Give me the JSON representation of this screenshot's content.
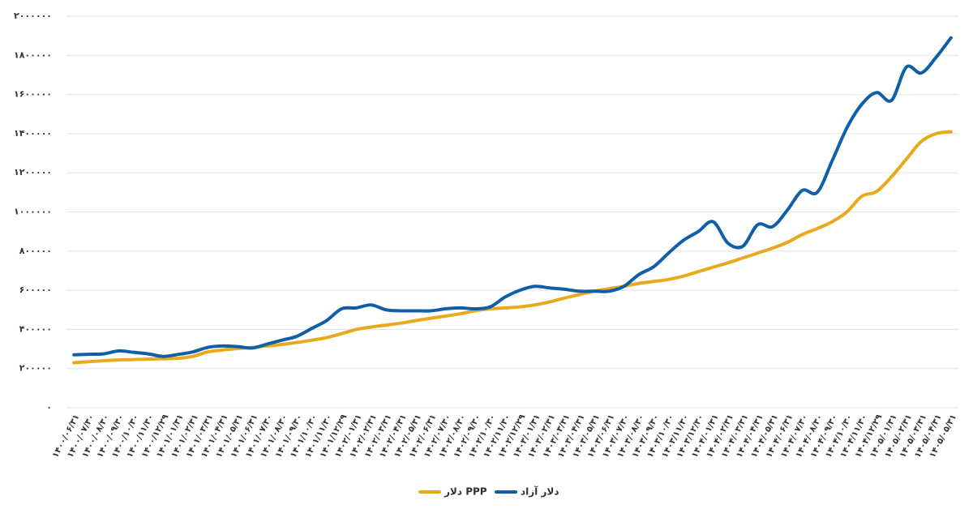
{
  "chart_data": {
    "type": "line",
    "categories": [
      "۱۴۰۰/۰۶/۳۱",
      "۱۴۰۰/۰۷/۳۰",
      "۱۴۰۰/۰۸/۳۰",
      "۱۴۰۰/۰۹/۳۰",
      "۱۴۰۰/۱۰/۳۰",
      "۱۴۰۰/۱۱/۳۰",
      "۱۴۰۰/۱۲/۲۹",
      "۱۴۰۱/۰۱/۳۱",
      "۱۴۰۱/۰۲/۳۱",
      "۱۴۰۱/۰۳/۳۱",
      "۱۴۰۱/۰۴/۳۱",
      "۱۴۰۱/۰۵/۳۱",
      "۱۴۰۱/۰۶/۳۱",
      "۱۴۰۱/۰۷/۳۰",
      "۱۴۰۱/۰۸/۳۰",
      "۱۴۰۱/۰۹/۳۰",
      "۱۴۰۱/۱۰/۳۰",
      "۱۴۰۱/۱۱/۳۰",
      "۱۴۰۱/۱۲/۲۹",
      "۱۴۰۲/۰۱/۳۱",
      "۱۴۰۲/۰۲/۳۱",
      "۱۴۰۲/۰۳/۳۱",
      "۱۴۰۲/۰۴/۳۱",
      "۱۴۰۲/۰۵/۳۱",
      "۱۴۰۲/۰۶/۳۱",
      "۱۴۰۲/۰۷/۳۰",
      "۱۴۰۲/۰۸/۳۰",
      "۱۴۰۲/۰۹/۳۰",
      "۱۴۰۲/۱۰/۳۰",
      "۱۴۰۲/۱۱/۳۰",
      "۱۴۰۲/۱۲/۲۹",
      "۱۴۰۳/۰۱/۳۱",
      "۱۴۰۳/۰۲/۳۱",
      "۱۴۰۳/۰۳/۳۱",
      "۱۴۰۳/۰۴/۳۱",
      "۱۴۰۳/۰۵/۳۱",
      "۱۴۰۳/۰۶/۳۱",
      "۱۴۰۳/۰۷/۳۰",
      "۱۴۰۳/۰۸/۳۰",
      "۱۴۰۳/۰۹/۳۰",
      "۱۴۰۳/۱۰/۳۰",
      "۱۴۰۳/۱۱/۳۰",
      "۱۴۰۳/۱۲/۳۰",
      "۱۴۰۴/۰۱/۳۱",
      "۱۴۰۴/۰۲/۳۱",
      "۱۴۰۴/۰۳/۳۱",
      "۱۴۰۴/۰۴/۳۱",
      "۱۴۰۴/۰۵/۳۱",
      "۱۴۰۴/۰۶/۳۱",
      "۱۴۰۴/۰۷/۳۰",
      "۱۴۰۴/۰۸/۳۰",
      "۱۴۰۴/۰۹/۳۰",
      "۱۴۰۴/۱۰/۳۰",
      "۱۴۰۴/۱۱/۳۰",
      "۱۴۰۴/۱۲/۲۹",
      "۱۴۰۵/۰۱/۳۱",
      "۱۴۰۵/۰۲/۳۱",
      "۱۴۰۵/۰۳/۳۱",
      "۱۴۰۵/۰۴/۳۱",
      "۱۴۰۵/۰۵/۳۱"
    ],
    "series": [
      {
        "name": "دلار PPP",
        "color": "#e8a91c",
        "values": [
          230000,
          235000,
          240000,
          244000,
          246000,
          248000,
          250000,
          252000,
          262000,
          285000,
          295000,
          302000,
          308000,
          315000,
          323000,
          333000,
          345000,
          358000,
          378000,
          400000,
          412000,
          422000,
          432000,
          445000,
          457000,
          468000,
          480000,
          495000,
          505000,
          510000,
          515000,
          525000,
          540000,
          560000,
          578000,
          595000,
          608000,
          620000,
          635000,
          645000,
          655000,
          672000,
          695000,
          718000,
          740000,
          765000,
          790000,
          815000,
          845000,
          885000,
          915000,
          950000,
          1000000,
          1080000,
          1105000,
          1180000,
          1270000,
          1360000,
          1400000,
          1410000
        ]
      },
      {
        "name": "دلار آزاد",
        "color": "#0f5ea8",
        "values": [
          270000,
          273000,
          275000,
          290000,
          283000,
          275000,
          262000,
          272000,
          285000,
          308000,
          315000,
          312000,
          305000,
          325000,
          345000,
          365000,
          405000,
          445000,
          505000,
          510000,
          525000,
          500000,
          495000,
          495000,
          495000,
          505000,
          510000,
          505000,
          515000,
          565000,
          600000,
          620000,
          612000,
          605000,
          595000,
          595000,
          595000,
          620000,
          680000,
          720000,
          790000,
          855000,
          900000,
          950000,
          840000,
          825000,
          935000,
          925000,
          1010000,
          1110000,
          1100000,
          1260000,
          1430000,
          1550000,
          1610000,
          1570000,
          1740000,
          1710000,
          1790000,
          1890000
        ]
      }
    ],
    "ylim": [
      0,
      2000000
    ],
    "yticks": [
      {
        "value": 0,
        "label": "۰"
      },
      {
        "value": 200000,
        "label": "۲۰۰۰۰۰"
      },
      {
        "value": 400000,
        "label": "۴۰۰۰۰۰"
      },
      {
        "value": 600000,
        "label": "۶۰۰۰۰۰"
      },
      {
        "value": 800000,
        "label": "۸۰۰۰۰۰"
      },
      {
        "value": 1000000,
        "label": "۱۰۰۰۰۰۰"
      },
      {
        "value": 1200000,
        "label": "۱۲۰۰۰۰۰"
      },
      {
        "value": 1400000,
        "label": "۱۴۰۰۰۰۰"
      },
      {
        "value": 1600000,
        "label": "۱۶۰۰۰۰۰"
      },
      {
        "value": 1800000,
        "label": "۱۸۰۰۰۰۰"
      },
      {
        "value": 2000000,
        "label": "۲۰۰۰۰۰۰"
      }
    ],
    "grid": true
  }
}
